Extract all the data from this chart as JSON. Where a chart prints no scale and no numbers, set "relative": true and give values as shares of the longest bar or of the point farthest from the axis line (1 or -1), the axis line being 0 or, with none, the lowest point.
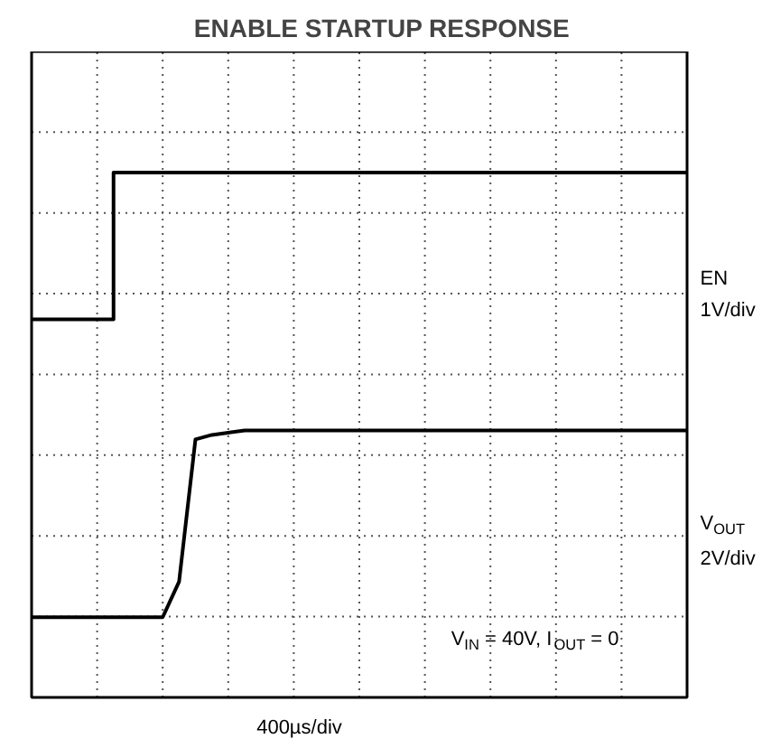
{
  "chart_data": {
    "type": "line",
    "title": "ENABLE STARTUP RESPONSE",
    "relative": true,
    "grid": true,
    "legend": false,
    "categories": [
      null,
      null,
      null,
      null,
      null,
      null,
      null,
      null,
      null,
      null,
      null,
      null,
      null,
      null,
      null,
      null,
      null,
      null,
      null,
      null,
      null,
      null,
      null,
      null,
      null,
      null,
      null,
      null,
      null,
      null,
      null,
      null,
      null,
      null,
      null,
      null,
      null,
      null,
      null,
      null,
      null
    ],
    "series": [
      {
        "name": "EN",
        "type": "step",
        "color": "#000000",
        "values": [
          0.67,
          0.67,
          0.67,
          0.67,
          0.67,
          1,
          1,
          1,
          1,
          1,
          1,
          1,
          1,
          1,
          1,
          1,
          1,
          1,
          1,
          1,
          1,
          1,
          1,
          1,
          1,
          1,
          1,
          1,
          1,
          1,
          1,
          1,
          1,
          1,
          1,
          1,
          1,
          1,
          1,
          1,
          1
        ]
      },
      {
        "name": "V$_{OUT}$",
        "type": "line",
        "color": "#000000",
        "values": [
          0,
          0,
          0,
          0,
          0,
          0,
          0,
          0,
          0,
          0.08,
          0.4,
          0.41,
          0.415,
          0.42,
          0.42,
          0.42,
          0.42,
          0.42,
          0.42,
          0.42,
          0.42,
          0.42,
          0.42,
          0.42,
          0.42,
          0.42,
          0.42,
          0.42,
          0.42,
          0.42,
          0.42,
          0.42,
          0.42,
          0.42,
          0.42,
          0.42,
          0.42,
          0.42,
          0.42,
          0.42,
          0.42
        ]
      }
    ],
    "annotations": [
      "1V/div",
      "2V/div",
      "V$_{IN}$ = 40V, I$_{OUT}$ = 0",
      "400µs/div"
    ]
  }
}
